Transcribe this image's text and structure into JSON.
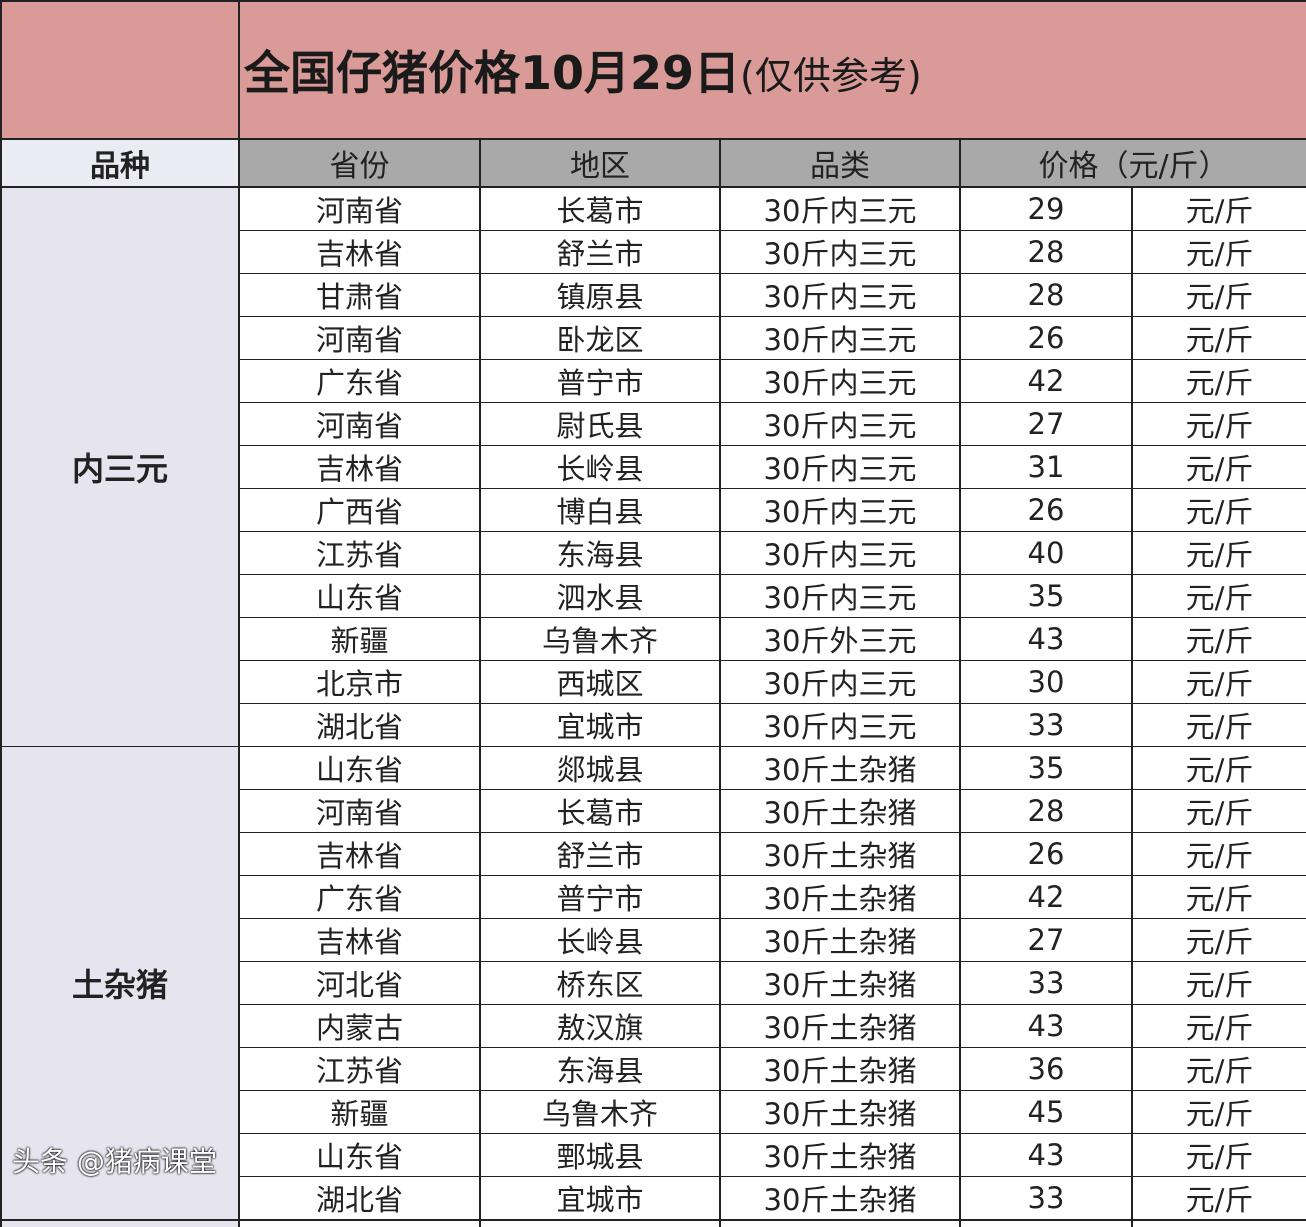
{
  "title": {
    "main": "全国仔猪价格10月29日",
    "note": "(仅供参考)"
  },
  "headers": {
    "breed": "品种",
    "province": "省份",
    "region": "地区",
    "category": "品类",
    "price": "价格（元/斤）"
  },
  "groups": [
    {
      "breed": "内三元",
      "rows": [
        [
          "河南省",
          "长葛市",
          "30斤内三元",
          "29",
          "元/斤"
        ],
        [
          "吉林省",
          "舒兰市",
          "30斤内三元",
          "28",
          "元/斤"
        ],
        [
          "甘肃省",
          "镇原县",
          "30斤内三元",
          "28",
          "元/斤"
        ],
        [
          "河南省",
          "卧龙区",
          "30斤内三元",
          "26",
          "元/斤"
        ],
        [
          "广东省",
          "普宁市",
          "30斤内三元",
          "42",
          "元/斤"
        ],
        [
          "河南省",
          "尉氏县",
          "30斤内三元",
          "27",
          "元/斤"
        ],
        [
          "吉林省",
          "长岭县",
          "30斤内三元",
          "31",
          "元/斤"
        ],
        [
          "广西省",
          "博白县",
          "30斤内三元",
          "26",
          "元/斤"
        ],
        [
          "江苏省",
          "东海县",
          "30斤内三元",
          "40",
          "元/斤"
        ],
        [
          "山东省",
          "泗水县",
          "30斤内三元",
          "35",
          "元/斤"
        ],
        [
          "新疆",
          "乌鲁木齐",
          "30斤外三元",
          "43",
          "元/斤"
        ],
        [
          "北京市",
          "西城区",
          "30斤内三元",
          "30",
          "元/斤"
        ],
        [
          "湖北省",
          "宜城市",
          "30斤内三元",
          "33",
          "元/斤"
        ]
      ]
    },
    {
      "breed": "土杂猪",
      "rows": [
        [
          "山东省",
          "郯城县",
          "30斤土杂猪",
          "35",
          "元/斤"
        ],
        [
          "河南省",
          "长葛市",
          "30斤土杂猪",
          "28",
          "元/斤"
        ],
        [
          "吉林省",
          "舒兰市",
          "30斤土杂猪",
          "26",
          "元/斤"
        ],
        [
          "广东省",
          "普宁市",
          "30斤土杂猪",
          "42",
          "元/斤"
        ],
        [
          "吉林省",
          "长岭县",
          "30斤土杂猪",
          "27",
          "元/斤"
        ],
        [
          "河北省",
          "桥东区",
          "30斤土杂猪",
          "33",
          "元/斤"
        ],
        [
          "内蒙古",
          "敖汉旗",
          "30斤土杂猪",
          "43",
          "元/斤"
        ],
        [
          "江苏省",
          "东海县",
          "30斤土杂猪",
          "36",
          "元/斤"
        ],
        [
          "新疆",
          "乌鲁木齐",
          "30斤土杂猪",
          "45",
          "元/斤"
        ],
        [
          "山东省",
          "鄄城县",
          "30斤土杂猪",
          "43",
          "元/斤"
        ],
        [
          "湖北省",
          "宜城市",
          "30斤土杂猪",
          "33",
          "元/斤"
        ]
      ]
    }
  ],
  "watermark": "头条 @猪病课堂",
  "colors": {
    "title_bg": "#d99a98",
    "header_bg": "#a9a9a9",
    "breed_bg": "#e6e4ee"
  }
}
